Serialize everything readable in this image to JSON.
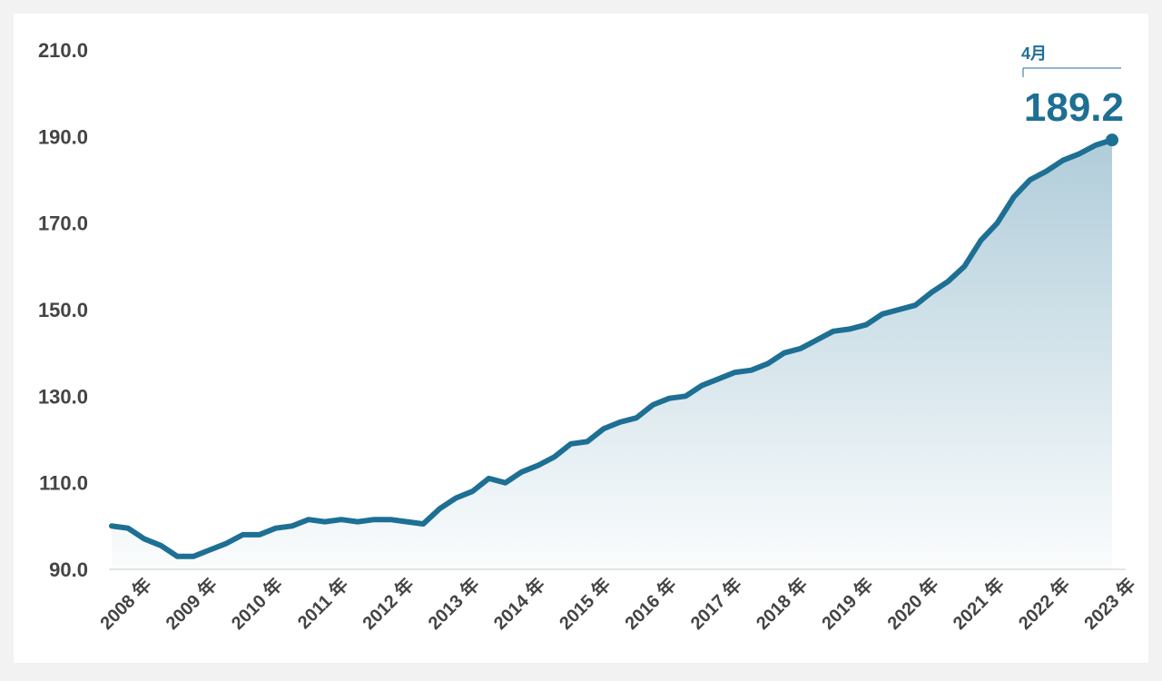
{
  "chart_data": {
    "type": "area-line",
    "annotation": "4月",
    "xlim": [
      2008.0,
      2023.25
    ],
    "ylim": [
      90,
      210
    ],
    "yticks": [
      {
        "value": 90,
        "label": "90.0"
      },
      {
        "value": 110,
        "label": "110.0"
      },
      {
        "value": 130,
        "label": "130.0"
      },
      {
        "value": 150,
        "label": "150.0"
      },
      {
        "value": 170,
        "label": "170.0"
      },
      {
        "value": 190,
        "label": "190.0"
      },
      {
        "value": 210,
        "label": "210.0"
      }
    ],
    "xticks": [
      {
        "value": 2008,
        "label": "2008 年"
      },
      {
        "value": 2009,
        "label": "2009 年"
      },
      {
        "value": 2010,
        "label": "2010 年"
      },
      {
        "value": 2011,
        "label": "2011 年"
      },
      {
        "value": 2012,
        "label": "2012 年"
      },
      {
        "value": 2013,
        "label": "2013 年"
      },
      {
        "value": 2014,
        "label": "2014 年"
      },
      {
        "value": 2015,
        "label": "2015 年"
      },
      {
        "value": 2016,
        "label": "2016 年"
      },
      {
        "value": 2017,
        "label": "2017 年"
      },
      {
        "value": 2018,
        "label": "2018 年"
      },
      {
        "value": 2019,
        "label": "2019 年"
      },
      {
        "value": 2020,
        "label": "2020 年"
      },
      {
        "value": 2021,
        "label": "2021 年"
      },
      {
        "value": 2022,
        "label": "2022 年"
      },
      {
        "value": 2023,
        "label": "2023 年"
      }
    ],
    "grid": false,
    "x": [
      2008.0,
      2008.25,
      2008.5,
      2008.75,
      2009.0,
      2009.25,
      2009.5,
      2009.75,
      2010.0,
      2010.25,
      2010.5,
      2010.75,
      2011.0,
      2011.25,
      2011.5,
      2011.75,
      2012.0,
      2012.25,
      2012.5,
      2012.75,
      2013.0,
      2013.25,
      2013.5,
      2013.75,
      2014.0,
      2014.25,
      2014.5,
      2014.75,
      2015.0,
      2015.25,
      2015.5,
      2015.75,
      2016.0,
      2016.25,
      2016.5,
      2016.75,
      2017.0,
      2017.25,
      2017.5,
      2017.75,
      2018.0,
      2018.25,
      2018.5,
      2018.75,
      2019.0,
      2019.25,
      2019.5,
      2019.75,
      2020.0,
      2020.25,
      2020.5,
      2020.75,
      2021.0,
      2021.25,
      2021.5,
      2021.75,
      2022.0,
      2022.25,
      2022.5,
      2022.75,
      2023.0,
      2023.25
    ],
    "series": [
      {
        "color": "#1e6f94",
        "values": [
          100,
          99.5,
          97,
          95.5,
          93,
          93,
          94.5,
          96,
          98,
          98,
          99.5,
          100,
          101.5,
          101,
          101.5,
          101,
          101.5,
          101.5,
          101,
          100.5,
          104,
          106.5,
          108,
          111,
          110,
          112.5,
          114,
          116,
          119,
          119.5,
          122.5,
          124,
          125,
          128,
          129.5,
          130,
          132.5,
          134,
          135.5,
          136,
          137.5,
          140,
          141,
          143,
          145,
          145.5,
          146.5,
          149,
          150,
          151,
          154,
          156.5,
          160,
          166,
          170,
          176,
          180,
          182,
          184.5,
          186,
          188,
          189.2
        ]
      }
    ]
  }
}
